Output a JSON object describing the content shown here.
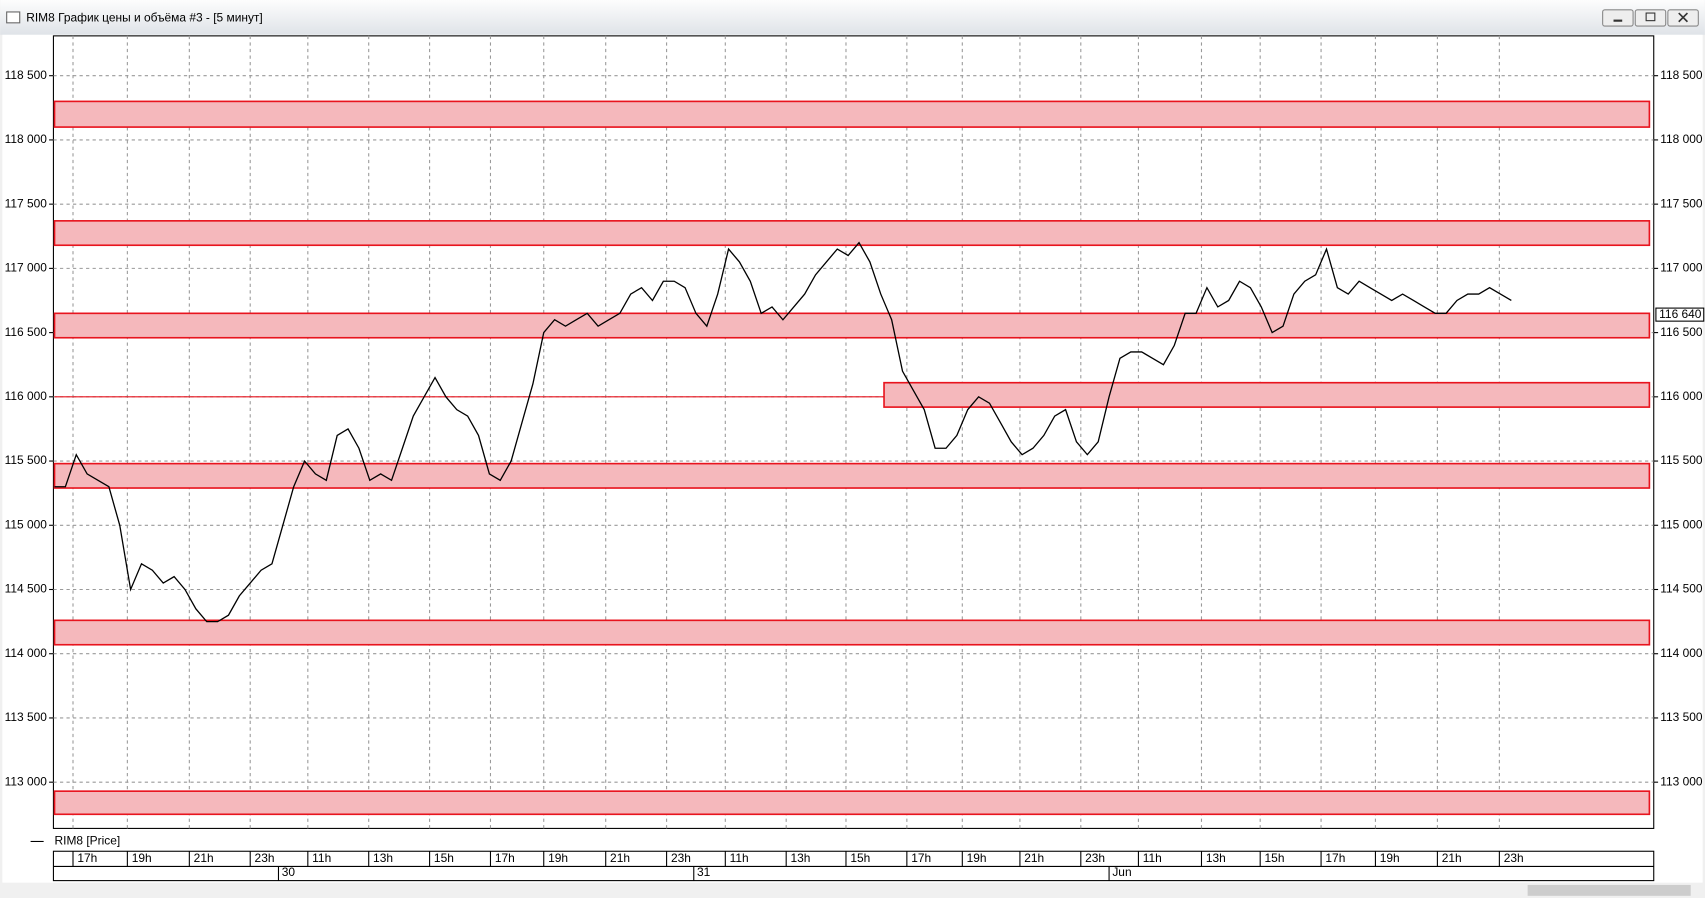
{
  "window": {
    "title": "RIM8 График цены и объёма #3 - [5 минут]"
  },
  "chart_data": {
    "type": "line",
    "series": [
      {
        "name": "RIM8 [Price]",
        "color": "#000000",
        "values": [
          115300,
          115300,
          115550,
          115400,
          115350,
          115300,
          115000,
          114500,
          114700,
          114650,
          114550,
          114600,
          114500,
          114350,
          114250,
          114250,
          114300,
          114450,
          114550,
          114650,
          114700,
          115000,
          115300,
          115500,
          115400,
          115350,
          115700,
          115750,
          115600,
          115350,
          115400,
          115350,
          115600,
          115850,
          116000,
          116150,
          116000,
          115900,
          115850,
          115700,
          115400,
          115350,
          115500,
          115800,
          116100,
          116500,
          116600,
          116550,
          116600,
          116650,
          116550,
          116600,
          116650,
          116800,
          116850,
          116750,
          116900,
          116900,
          116850,
          116650,
          116550,
          116800,
          117150,
          117050,
          116900,
          116650,
          116700,
          116600,
          116700,
          116800,
          116950,
          117050,
          117150,
          117100,
          117200,
          117050,
          116800,
          116600,
          116200,
          116050,
          115900,
          115600,
          115600,
          115700,
          115900,
          116000,
          115950,
          115800,
          115650,
          115550,
          115600,
          115700,
          115850,
          115900,
          115650,
          115550,
          115650,
          116000,
          116300,
          116350,
          116350,
          116300,
          116250,
          116400,
          116650,
          116650,
          116850,
          116700,
          116750,
          116900,
          116850,
          116700,
          116500,
          116550,
          116800,
          116900,
          116950,
          117150,
          116850,
          116800,
          116900,
          116850,
          116800,
          116750,
          116800,
          116750,
          116700,
          116650,
          116650,
          116750,
          116800,
          116800,
          116850,
          116800,
          116750
        ]
      }
    ],
    "x": [
      0,
      1,
      2,
      3,
      4,
      5,
      6,
      7,
      8,
      9,
      10,
      11,
      12,
      13,
      14,
      15,
      16,
      17,
      18,
      19,
      20,
      21,
      22,
      23,
      24,
      25,
      26,
      27,
      28,
      29,
      30,
      31,
      32,
      33,
      34,
      35,
      36,
      37,
      38,
      39,
      40,
      41,
      42,
      43,
      44,
      45,
      46,
      47,
      48,
      49,
      50,
      51,
      52,
      53,
      54,
      55,
      56,
      57,
      58,
      59,
      60,
      61,
      62,
      63,
      64,
      65,
      66,
      67,
      68,
      69,
      70,
      71,
      72,
      73,
      74,
      75,
      76,
      77,
      78,
      79,
      80,
      81,
      82,
      83,
      84,
      85,
      86,
      87,
      88,
      89,
      90,
      91,
      92,
      93,
      94,
      95,
      96,
      97,
      98,
      99,
      100,
      101,
      102,
      103,
      104,
      105,
      106,
      107,
      108,
      109,
      110,
      111,
      112,
      113,
      114,
      115,
      116,
      117,
      118,
      119,
      120,
      121,
      122,
      123,
      124,
      125,
      126,
      127,
      128,
      129,
      130,
      131,
      132,
      133,
      134
    ],
    "xlim": [
      -0.1,
      147.1
    ],
    "xticks": [
      {
        "value": 1.7,
        "label": "17h"
      },
      {
        "value": 6.7,
        "label": "19h"
      },
      {
        "value": 12.4,
        "label": "21h"
      },
      {
        "value": 18,
        "label": "23h"
      },
      {
        "value": 23.3,
        "label": "11h"
      },
      {
        "value": 28.9,
        "label": "13h"
      },
      {
        "value": 34.5,
        "label": "15h"
      },
      {
        "value": 40.1,
        "label": "17h"
      },
      {
        "value": 45,
        "label": "19h"
      },
      {
        "value": 50.7,
        "label": "21h"
      },
      {
        "value": 56.3,
        "label": "23h"
      },
      {
        "value": 61.7,
        "label": "11h"
      },
      {
        "value": 67.3,
        "label": "13h"
      },
      {
        "value": 72.8,
        "label": "15h"
      },
      {
        "value": 78.4,
        "label": "17h"
      },
      {
        "value": 83.5,
        "label": "19h"
      },
      {
        "value": 88.8,
        "label": "21h"
      },
      {
        "value": 94.4,
        "label": "23h"
      },
      {
        "value": 99.7,
        "label": "11h"
      },
      {
        "value": 105.5,
        "label": "13h"
      },
      {
        "value": 110.9,
        "label": "15h"
      },
      {
        "value": 116.5,
        "label": "17h"
      },
      {
        "value": 121.5,
        "label": "19h"
      },
      {
        "value": 127.2,
        "label": "21h"
      },
      {
        "value": 132.9,
        "label": "23h"
      }
    ],
    "day_ticks": [
      {
        "value": 20.6,
        "label": "30"
      },
      {
        "value": 58.8,
        "label": "31"
      },
      {
        "value": 97,
        "label": "Jun"
      }
    ],
    "ylim": [
      112640,
      118810
    ],
    "yticks": [
      {
        "value": 113000,
        "label": "113 000"
      },
      {
        "value": 113500,
        "label": "113 500"
      },
      {
        "value": 114000,
        "label": "114 000"
      },
      {
        "value": 114500,
        "label": "114 500"
      },
      {
        "value": 115000,
        "label": "115 000"
      },
      {
        "value": 115500,
        "label": "115 500"
      },
      {
        "value": 116000,
        "label": "116 000"
      },
      {
        "value": 116500,
        "label": "116 500"
      },
      {
        "value": 117000,
        "label": "117 000"
      },
      {
        "value": 117500,
        "label": "117 500"
      },
      {
        "value": 118000,
        "label": "118 000"
      },
      {
        "value": 118500,
        "label": "118 500"
      }
    ],
    "grid": true,
    "zones": [
      {
        "low": 118100,
        "high": 118300,
        "x0": 0,
        "x1": 146.7
      },
      {
        "low": 117180,
        "high": 117370,
        "x0": 0,
        "x1": 146.7
      },
      {
        "low": 116460,
        "high": 116650,
        "x0": 0,
        "x1": 146.7
      },
      {
        "low": 115920,
        "high": 116110,
        "x0": 76.3,
        "x1": 146.7
      },
      {
        "low": 115290,
        "high": 115480,
        "x0": 0,
        "x1": 146.7
      },
      {
        "low": 114070,
        "high": 114260,
        "x0": 0,
        "x1": 146.7
      },
      {
        "low": 112750,
        "high": 112930,
        "x0": 0,
        "x1": 146.7
      }
    ],
    "zone_color": "#f5b8bc",
    "zone_edge": "#e8141e",
    "levels": [
      {
        "value": 116000,
        "x0": 0,
        "x1": 76.3
      }
    ],
    "last_price": {
      "value": 116640,
      "label": "116 640"
    }
  }
}
